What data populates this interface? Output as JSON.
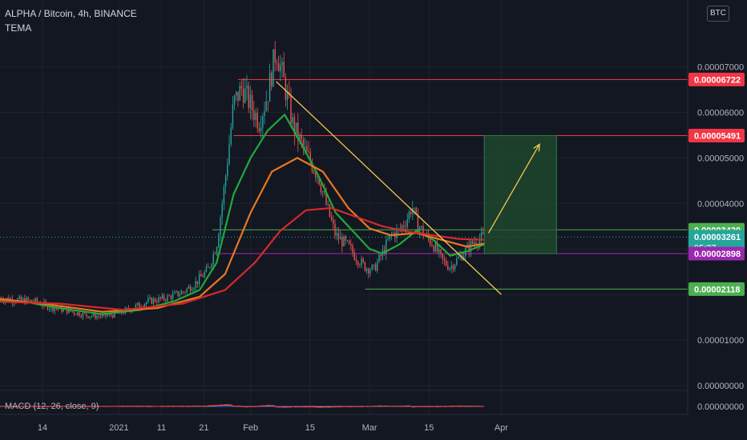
{
  "header": {
    "symbol_line": "ALPHA / Bitcoin, 4h, BINANCE",
    "indicator_label": "TEMA",
    "currency_button": "BTC"
  },
  "macd": {
    "label": "MACD (12, 26, close, 9)"
  },
  "colors": {
    "background": "#131722",
    "up_candle": "#26a69a",
    "down_candle": "#ef5350",
    "ema_green": "#22a83a",
    "ema_orange": "#e87722",
    "ema_red": "#d42a2a",
    "level_red": "#f23645",
    "level_green": "#4caf50",
    "level_magenta": "#b622b6",
    "trend_yellow": "#f2c94c",
    "target_box": "#1f4d2e"
  },
  "chart_data": {
    "type": "candlestick",
    "y_scale": {
      "ticks": [
        "0.00007000",
        "0.00006000",
        "0.00005000",
        "0.00004000",
        "0.00001000",
        "0.00000000"
      ],
      "unit": "BTC"
    },
    "x_ticks": [
      "14",
      "2021",
      "11",
      "21",
      "Feb",
      "15",
      "Mar",
      "15",
      "Apr"
    ],
    "price_labels": [
      {
        "value": "0.00006722",
        "color": "#f23645"
      },
      {
        "value": "0.00005491",
        "color": "#f23645"
      },
      {
        "value": "0.00003420",
        "color": "#4caf50"
      },
      {
        "value": "0.00003261",
        "color": "#26a69a",
        "countdown": "05:27"
      },
      {
        "value": "0.00002898",
        "color": "#9c27b0"
      },
      {
        "value": "0.00002118",
        "color": "#4caf50"
      }
    ],
    "price_path": [
      [
        "2020-12-04",
        1.92
      ],
      [
        "2020-12-08",
        1.88
      ],
      [
        "2020-12-12",
        1.85
      ],
      [
        "2020-12-16",
        1.72
      ],
      [
        "2020-12-20",
        1.65
      ],
      [
        "2020-12-24",
        1.55
      ],
      [
        "2020-12-28",
        1.52
      ],
      [
        "2021-01-01",
        1.58
      ],
      [
        "2021-01-04",
        1.7
      ],
      [
        "2021-01-08",
        1.85
      ],
      [
        "2021-01-12",
        1.92
      ],
      [
        "2021-01-16",
        2.05
      ],
      [
        "2021-01-19",
        2.25
      ],
      [
        "2021-01-22",
        2.55
      ],
      [
        "2021-01-24",
        3.1
      ],
      [
        "2021-01-26",
        4.5
      ],
      [
        "2021-01-28",
        6.2
      ],
      [
        "2021-01-30",
        6.55
      ],
      [
        "2021-02-01",
        6.15
      ],
      [
        "2021-02-03",
        5.8
      ],
      [
        "2021-02-05",
        6.4
      ],
      [
        "2021-02-07",
        7.4
      ],
      [
        "2021-02-09",
        6.6
      ],
      [
        "2021-02-11",
        5.7
      ],
      [
        "2021-02-14",
        5.1
      ],
      [
        "2021-02-17",
        4.6
      ],
      [
        "2021-02-19",
        3.9
      ],
      [
        "2021-02-21",
        3.3
      ],
      [
        "2021-02-24",
        3.05
      ],
      [
        "2021-02-26",
        2.8
      ],
      [
        "2021-02-28",
        2.6
      ],
      [
        "2021-03-02",
        2.55
      ],
      [
        "2021-03-04",
        2.9
      ],
      [
        "2021-03-06",
        3.3
      ],
      [
        "2021-03-08",
        3.4
      ],
      [
        "2021-03-10",
        3.7
      ],
      [
        "2021-03-11",
        3.95
      ],
      [
        "2021-03-12",
        3.6
      ],
      [
        "2021-03-14",
        3.3
      ],
      [
        "2021-03-16",
        3.1
      ],
      [
        "2021-03-18",
        2.75
      ],
      [
        "2021-03-20",
        2.6
      ],
      [
        "2021-03-22",
        2.8
      ],
      [
        "2021-03-24",
        3.0
      ],
      [
        "2021-03-26",
        3.2
      ],
      [
        "2021-03-28",
        3.26
      ]
    ],
    "moving_averages": [
      {
        "color": "#22a83a",
        "points": [
          [
            "2020-12-04",
            1.86
          ],
          [
            "2020-12-10",
            1.84
          ],
          [
            "2020-12-18",
            1.7
          ],
          [
            "2020-12-28",
            1.57
          ],
          [
            "2021-01-06",
            1.66
          ],
          [
            "2021-01-14",
            1.85
          ],
          [
            "2021-01-20",
            2.1
          ],
          [
            "2021-01-24",
            2.7
          ],
          [
            "2021-01-28",
            4.2
          ],
          [
            "2021-02-01",
            5.0
          ],
          [
            "2021-02-05",
            5.6
          ],
          [
            "2021-02-09",
            5.95
          ],
          [
            "2021-02-13",
            5.3
          ],
          [
            "2021-02-17",
            4.6
          ],
          [
            "2021-02-21",
            3.8
          ],
          [
            "2021-02-26",
            3.3
          ],
          [
            "2021-03-01",
            3.0
          ],
          [
            "2021-03-04",
            2.9
          ],
          [
            "2021-03-08",
            3.1
          ],
          [
            "2021-03-12",
            3.4
          ],
          [
            "2021-03-16",
            3.2
          ],
          [
            "2021-03-20",
            2.85
          ],
          [
            "2021-03-24",
            2.95
          ],
          [
            "2021-03-28",
            3.1
          ]
        ]
      },
      {
        "color": "#e87722",
        "points": [
          [
            "2020-12-04",
            1.9
          ],
          [
            "2020-12-14",
            1.8
          ],
          [
            "2020-12-28",
            1.62
          ],
          [
            "2021-01-10",
            1.7
          ],
          [
            "2021-01-20",
            1.95
          ],
          [
            "2021-01-26",
            2.45
          ],
          [
            "2021-02-01",
            3.8
          ],
          [
            "2021-02-06",
            4.7
          ],
          [
            "2021-02-12",
            5.0
          ],
          [
            "2021-02-18",
            4.7
          ],
          [
            "2021-02-24",
            3.9
          ],
          [
            "2021-03-01",
            3.45
          ],
          [
            "2021-03-06",
            3.3
          ],
          [
            "2021-03-12",
            3.35
          ],
          [
            "2021-03-18",
            3.2
          ],
          [
            "2021-03-24",
            3.05
          ],
          [
            "2021-03-28",
            3.12
          ]
        ]
      },
      {
        "color": "#d42a2a",
        "points": [
          [
            "2020-12-04",
            1.84
          ],
          [
            "2020-12-18",
            1.8
          ],
          [
            "2021-01-02",
            1.66
          ],
          [
            "2021-01-16",
            1.8
          ],
          [
            "2021-01-26",
            2.1
          ],
          [
            "2021-02-02",
            2.7
          ],
          [
            "2021-02-08",
            3.4
          ],
          [
            "2021-02-14",
            3.85
          ],
          [
            "2021-02-20",
            3.9
          ],
          [
            "2021-02-26",
            3.7
          ],
          [
            "2021-03-04",
            3.5
          ],
          [
            "2021-03-10",
            3.38
          ],
          [
            "2021-03-16",
            3.3
          ],
          [
            "2021-03-22",
            3.22
          ],
          [
            "2021-03-28",
            3.2
          ]
        ]
      }
    ],
    "levels": [
      {
        "value": 6.722,
        "color": "#f23645",
        "from": "2021-01-29"
      },
      {
        "value": 5.491,
        "color": "#f23645",
        "from": "2021-01-28"
      },
      {
        "value": 3.42,
        "color": "#4caf50",
        "from": "2021-01-23"
      },
      {
        "value": 2.898,
        "color": "#b622b6",
        "from": "2021-01-24"
      },
      {
        "value": 2.118,
        "color": "#4caf50",
        "from": "2021-02-28"
      }
    ],
    "trendline": {
      "from": [
        "2021-02-07",
        6.68
      ],
      "to": [
        "2021-04-01",
        2.0
      ],
      "color": "#f2c94c"
    },
    "target_box": {
      "from": "2021-03-28",
      "to": "2021-04-14",
      "low": 2.898,
      "high": 5.491
    },
    "target_arrow": {
      "from": [
        "2021-03-29",
        3.35
      ],
      "to": [
        "2021-04-10",
        5.3
      ]
    },
    "current_price": 3.261,
    "price_multiplier_note": "values above are ×0.00001 BTC"
  }
}
